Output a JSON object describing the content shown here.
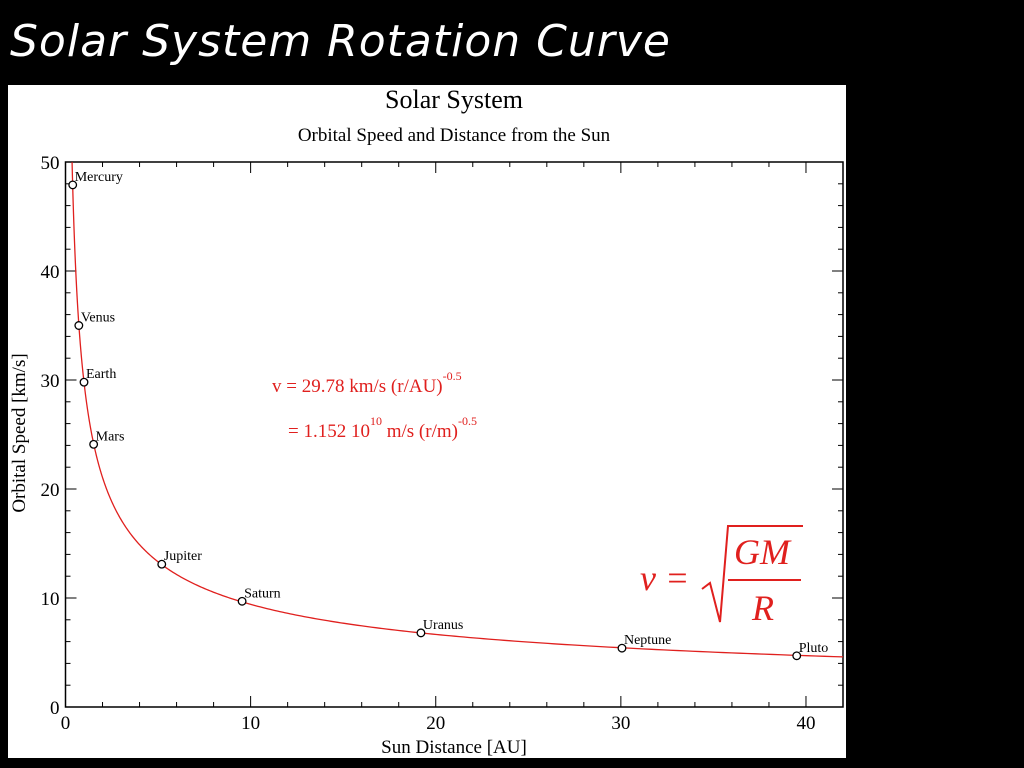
{
  "slide": {
    "title": "Solar System Rotation Curve"
  },
  "colors": {
    "background": "#000000",
    "panel": "#ffffff",
    "curve": "#e0201e",
    "formula": "#e0201e",
    "axes": "#000000"
  },
  "chart_data": {
    "type": "scatter",
    "title": "Solar System",
    "subtitle": "Orbital Speed and Distance from the Sun",
    "xlabel": "Sun Distance [AU]",
    "ylabel": "Orbital Speed [km/s]",
    "xlim": [
      0,
      42
    ],
    "ylim": [
      0,
      50
    ],
    "xticks": [
      0,
      10,
      20,
      30,
      40
    ],
    "yticks": [
      0,
      10,
      20,
      30,
      40,
      50
    ],
    "xticks_minor_step": 2,
    "yticks_minor_step": 2,
    "grid": false,
    "points": [
      {
        "name": "Mercury",
        "x": 0.39,
        "y": 47.9
      },
      {
        "name": "Venus",
        "x": 0.72,
        "y": 35.0
      },
      {
        "name": "Earth",
        "x": 1.0,
        "y": 29.8
      },
      {
        "name": "Mars",
        "x": 1.52,
        "y": 24.1
      },
      {
        "name": "Jupiter",
        "x": 5.2,
        "y": 13.1
      },
      {
        "name": "Saturn",
        "x": 9.54,
        "y": 9.7
      },
      {
        "name": "Uranus",
        "x": 19.2,
        "y": 6.8
      },
      {
        "name": "Neptune",
        "x": 30.06,
        "y": 5.4
      },
      {
        "name": "Pluto",
        "x": 39.5,
        "y": 4.7
      }
    ],
    "curve": {
      "coefficient": 29.78,
      "exponent": -0.5,
      "x_start": 0.355,
      "x_end": 42
    },
    "annotation": {
      "line1_main": "v = 29.78 km/s (r/AU)",
      "line1_exp": "-0.5",
      "line2_main_a": "= 1.152 10",
      "line2_exp_a": "10",
      "line2_main_b": " m/s (r/m)",
      "line2_exp_b": "-0.5"
    },
    "physics_formula": {
      "lhs": "v =",
      "numerator": "GM",
      "denominator": "R"
    }
  }
}
